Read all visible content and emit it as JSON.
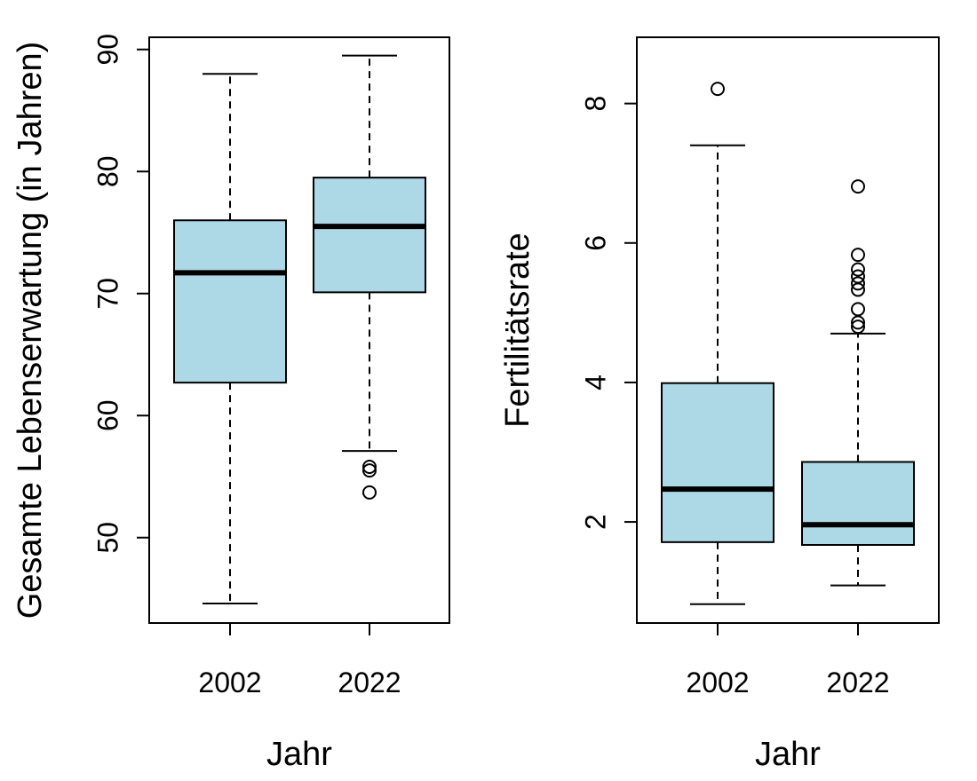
{
  "chart_data": [
    {
      "type": "boxplot",
      "title": "",
      "xlabel": "Jahr",
      "ylabel": "Gesamte Lebenserwartung (in Jahren)",
      "ylim": [
        43,
        91
      ],
      "yticks": [
        50,
        60,
        70,
        80,
        90
      ],
      "box_color": "#add8e6",
      "categories": [
        "2002",
        "2022"
      ],
      "boxes": [
        {
          "category": "2002",
          "whisker_low": 44.6,
          "q1": 62.7,
          "median": 71.7,
          "q3": 76.0,
          "whisker_high": 88.0,
          "outliers": []
        },
        {
          "category": "2022",
          "whisker_low": 57.1,
          "q1": 70.1,
          "median": 75.5,
          "q3": 79.5,
          "whisker_high": 89.5,
          "outliers": [
            55.8,
            55.5,
            53.7
          ]
        }
      ]
    },
    {
      "type": "boxplot",
      "title": "",
      "xlabel": "Jahr",
      "ylabel": "Fertilitätsrate",
      "ylim": [
        0.55,
        8.95
      ],
      "yticks": [
        2,
        4,
        6,
        8
      ],
      "box_color": "#add8e6",
      "categories": [
        "2002",
        "2022"
      ],
      "boxes": [
        {
          "category": "2002",
          "whisker_low": 0.82,
          "q1": 1.71,
          "median": 2.47,
          "q3": 3.99,
          "whisker_high": 7.4,
          "outliers": [
            8.21
          ]
        },
        {
          "category": "2022",
          "whisker_low": 1.09,
          "q1": 1.67,
          "median": 1.96,
          "q3": 2.86,
          "whisker_high": 4.7,
          "outliers": [
            6.81,
            5.83,
            5.62,
            5.52,
            5.42,
            5.33,
            5.05,
            4.86,
            4.8
          ]
        }
      ]
    }
  ]
}
